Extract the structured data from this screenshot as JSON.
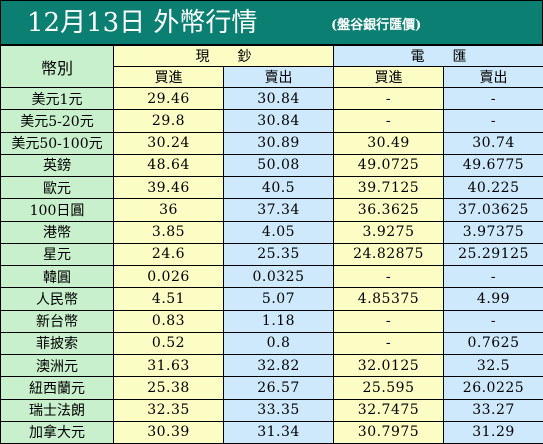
{
  "header": {
    "title": "12月13日 外幣行情",
    "subtitle": "(盤谷銀行匯價)"
  },
  "table": {
    "currency_header": "幣別",
    "cash_group": "現　　鈔",
    "telegraphic_group": "電　　匯",
    "buy_label": "買進",
    "sell_label": "賣出",
    "rows": [
      {
        "currency": "美元1元",
        "cash_buy": "29.46",
        "cash_sell": "30.84",
        "tt_buy": "-",
        "tt_sell": "-"
      },
      {
        "currency": "美元5-20元",
        "cash_buy": "29.8",
        "cash_sell": "30.84",
        "tt_buy": "-",
        "tt_sell": "-"
      },
      {
        "currency": "美元50-100元",
        "cash_buy": "30.24",
        "cash_sell": "30.89",
        "tt_buy": "30.49",
        "tt_sell": "30.74"
      },
      {
        "currency": "英鎊",
        "cash_buy": "48.64",
        "cash_sell": "50.08",
        "tt_buy": "49.0725",
        "tt_sell": "49.6775"
      },
      {
        "currency": "歐元",
        "cash_buy": "39.46",
        "cash_sell": "40.5",
        "tt_buy": "39.7125",
        "tt_sell": "40.225"
      },
      {
        "currency": "100日圓",
        "cash_buy": "36",
        "cash_sell": "37.34",
        "tt_buy": "36.3625",
        "tt_sell": "37.03625"
      },
      {
        "currency": "港幣",
        "cash_buy": "3.85",
        "cash_sell": "4.05",
        "tt_buy": "3.9275",
        "tt_sell": "3.97375"
      },
      {
        "currency": "星元",
        "cash_buy": "24.6",
        "cash_sell": "25.35",
        "tt_buy": "24.82875",
        "tt_sell": "25.29125"
      },
      {
        "currency": "韓圓",
        "cash_buy": "0.026",
        "cash_sell": "0.0325",
        "tt_buy": "-",
        "tt_sell": "-"
      },
      {
        "currency": "人民幣",
        "cash_buy": "4.51",
        "cash_sell": "5.07",
        "tt_buy": "4.85375",
        "tt_sell": "4.99"
      },
      {
        "currency": "新台幣",
        "cash_buy": "0.83",
        "cash_sell": "1.18",
        "tt_buy": "-",
        "tt_sell": "-"
      },
      {
        "currency": "菲披索",
        "cash_buy": "0.52",
        "cash_sell": "0.8",
        "tt_buy": "-",
        "tt_sell": "0.7625"
      },
      {
        "currency": "澳洲元",
        "cash_buy": "31.63",
        "cash_sell": "32.82",
        "tt_buy": "32.0125",
        "tt_sell": "32.5"
      },
      {
        "currency": "紐西蘭元",
        "cash_buy": "25.38",
        "cash_sell": "26.57",
        "tt_buy": "25.595",
        "tt_sell": "26.0225"
      },
      {
        "currency": "瑞士法朗",
        "cash_buy": "32.35",
        "cash_sell": "33.35",
        "tt_buy": "32.7475",
        "tt_sell": "33.27"
      },
      {
        "currency": "加拿大元",
        "cash_buy": "30.39",
        "cash_sell": "31.34",
        "tt_buy": "30.7975",
        "tt_sell": "31.29"
      }
    ]
  }
}
